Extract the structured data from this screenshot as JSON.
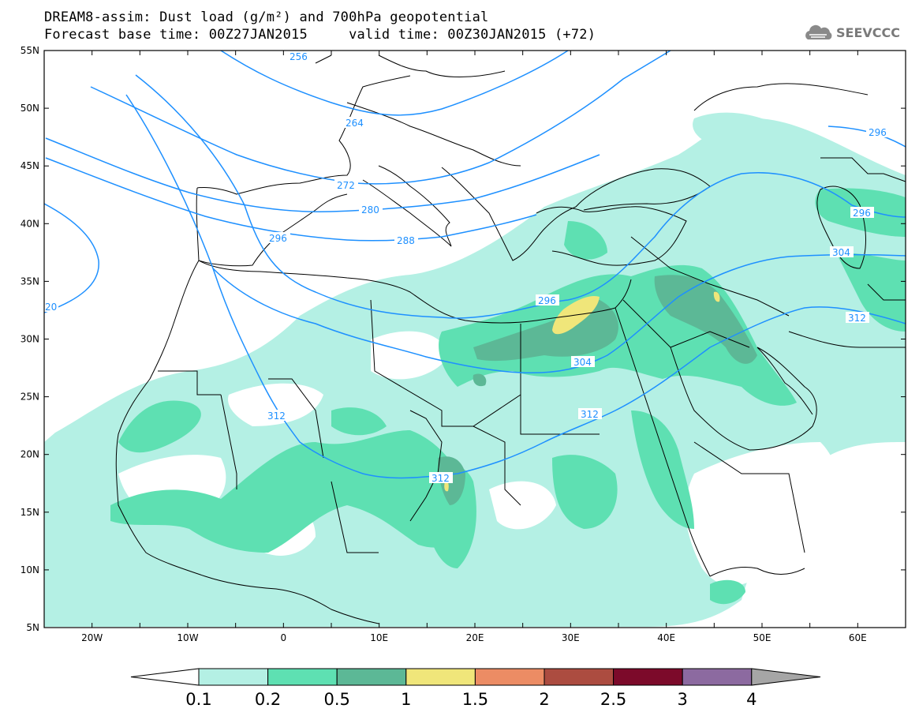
{
  "title": {
    "line1": "DREAM8-assim: Dust load (g/m²) and 700hPa geopotential",
    "line2": "Forecast base time: 00Z27JAN2015     valid time: 00Z30JAN2015 (+72)"
  },
  "logo": {
    "text": "SEEVCCC",
    "icon": "cloud-logo-icon"
  },
  "axes": {
    "lat_labels": [
      "55N",
      "50N",
      "45N",
      "40N",
      "35N",
      "30N",
      "25N",
      "20N",
      "15N",
      "10N",
      "5N"
    ],
    "lon_labels": [
      "20W",
      "10W",
      "0",
      "10E",
      "20E",
      "30E",
      "40E",
      "50E",
      "60E"
    ],
    "lat_range": [
      5,
      55
    ],
    "lon_range": [
      -25,
      65
    ]
  },
  "contours": {
    "color": "#1e90ff",
    "labels": [
      "256",
      "264",
      "272",
      "280",
      "288",
      "296",
      "296",
      "296",
      "304",
      "304",
      "312",
      "312",
      "312",
      "20",
      "296"
    ]
  },
  "colorbar": {
    "levels": [
      "0.1",
      "0.2",
      "0.5",
      "1",
      "1.5",
      "2",
      "2.5",
      "3",
      "4"
    ],
    "colors": [
      "#b4f0e4",
      "#5ee0b2",
      "#5cb896",
      "#f0e67a",
      "#ec8c64",
      "#ac4c40",
      "#7c0a2a",
      "#8c6aa0"
    ],
    "under_color": "#ffffff",
    "over_color": "#a6a6a6"
  },
  "dust_colors": {
    "light": "#b4f0e4",
    "medium": "#5ee0b2",
    "dark": "#5cb896",
    "yellow": "#f0e67a"
  }
}
